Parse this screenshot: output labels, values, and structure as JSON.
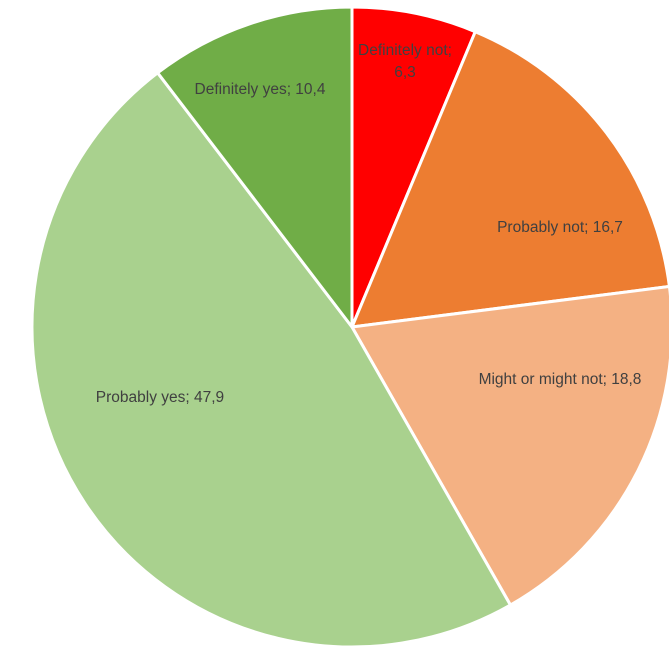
{
  "chart_data": {
    "type": "pie",
    "values": [
      6.3,
      16.7,
      18.8,
      47.9,
      10.4
    ],
    "value_labels": [
      "Definitely not; 6,3",
      "Probably not; 16,7",
      "Might or might not; 18,8",
      "Probably yes; 47,9",
      "Definitely yes; 10,4"
    ],
    "colors": [
      "#ff0000",
      "#ed7d31",
      "#f4b183",
      "#a9d18e",
      "#70ad47"
    ]
  }
}
